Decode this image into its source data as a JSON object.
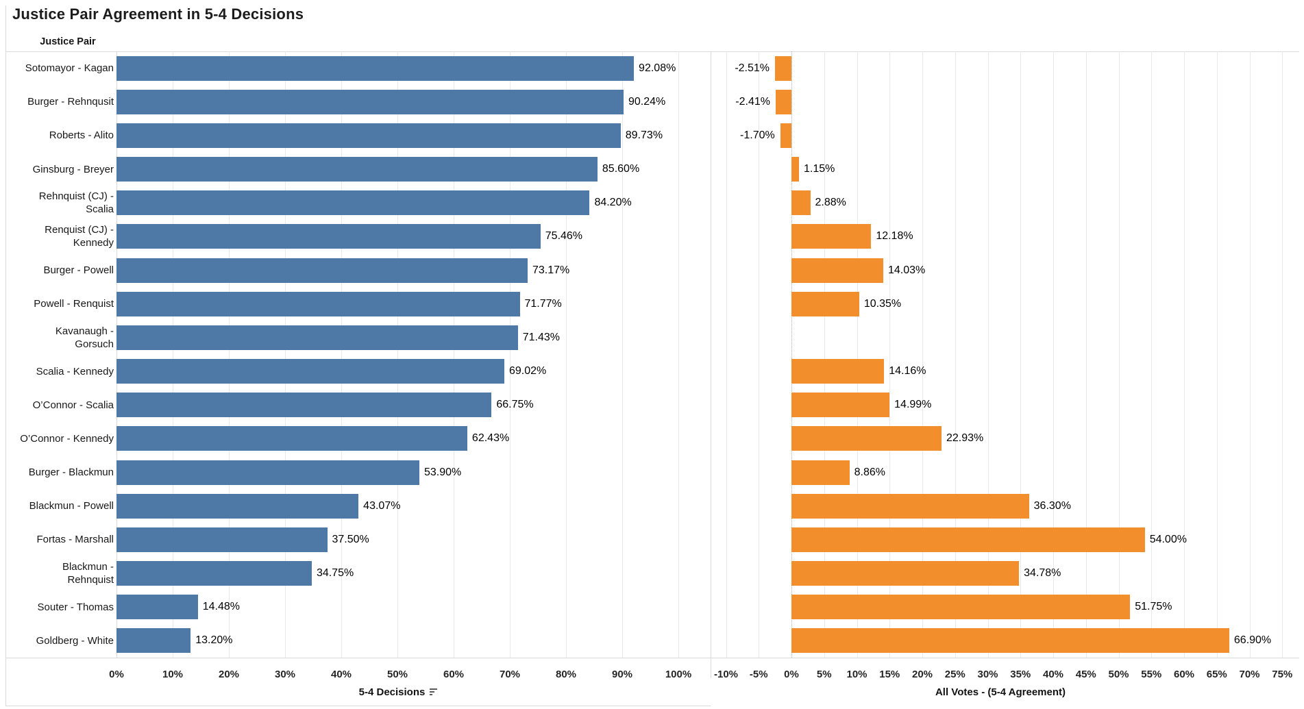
{
  "chart_data": {
    "type": "bar",
    "orientation": "horizontal",
    "title": "Justice Pair Agreement in 5-4 Decisions",
    "row_axis_header": "Justice Pair",
    "grid": true,
    "legend": "none",
    "categories": [
      "Sotomayor - Kagan",
      "Burger - Rehnqusit",
      "Roberts - Alito",
      "Ginsburg - Breyer",
      "Rehnquist (CJ) - Scalia",
      "Renquist (CJ) - Kennedy",
      "Burger - Powell",
      "Powell - Renquist",
      "Kavanaugh - Gorsuch",
      "Scalia - Kennedy",
      "O’Connor - Scalia",
      "O’Connor - Kennedy",
      "Burger - Blackmun",
      "Blackmun - Powell",
      "Fortas - Marshall",
      "Blackmun - Rehnquist",
      "Souter - Thomas",
      "Goldberg - White"
    ],
    "series": [
      {
        "name": "5-4 Decisions",
        "color": "#4e79a7",
        "values": [
          92.08,
          90.24,
          89.73,
          85.6,
          84.2,
          75.46,
          73.17,
          71.77,
          71.43,
          69.02,
          66.75,
          62.43,
          53.9,
          43.07,
          37.5,
          34.75,
          14.48,
          13.2
        ],
        "value_labels": [
          "92.08%",
          "90.24%",
          "89.73%",
          "85.60%",
          "84.20%",
          "75.46%",
          "73.17%",
          "71.77%",
          "71.43%",
          "69.02%",
          "66.75%",
          "62.43%",
          "53.90%",
          "43.07%",
          "37.50%",
          "34.75%",
          "14.48%",
          "13.20%"
        ],
        "axis": {
          "min": 0,
          "max": 100,
          "step": 10,
          "tick_labels": [
            "0%",
            "10%",
            "20%",
            "30%",
            "40%",
            "50%",
            "60%",
            "70%",
            "80%",
            "90%",
            "100%"
          ]
        }
      },
      {
        "name": "All Votes - (5-4 Agreement)",
        "color": "#f28e2b",
        "values": [
          -2.51,
          -2.41,
          -1.7,
          1.15,
          2.88,
          12.18,
          14.03,
          10.35,
          null,
          14.16,
          14.99,
          22.93,
          8.86,
          36.3,
          54.0,
          34.78,
          51.75,
          66.9
        ],
        "value_labels": [
          "-2.51%",
          "-2.41%",
          "-1.70%",
          "1.15%",
          "2.88%",
          "12.18%",
          "14.03%",
          "10.35%",
          "",
          "14.16%",
          "14.99%",
          "22.93%",
          "8.86%",
          "36.30%",
          "54.00%",
          "34.78%",
          "51.75%",
          "66.90%"
        ],
        "zero_line": "dotted",
        "axis": {
          "min": -10,
          "max": 75,
          "step": 5,
          "tick_labels": [
            "-10%",
            "-5%",
            "0%",
            "5%",
            "10%",
            "15%",
            "20%",
            "25%",
            "30%",
            "35%",
            "40%",
            "45%",
            "50%",
            "55%",
            "60%",
            "65%",
            "70%",
            "75%"
          ]
        }
      }
    ]
  },
  "colors": {
    "blue_bar": "#4e79a7",
    "orange_bar": "#f28e2b",
    "gridline": "#e9e9e9",
    "axis_line": "#d9d9d9",
    "zero_line": "#b3b3b3",
    "text": "#1e1e1e"
  },
  "icons": {
    "sort": "sort-descending-icon"
  }
}
